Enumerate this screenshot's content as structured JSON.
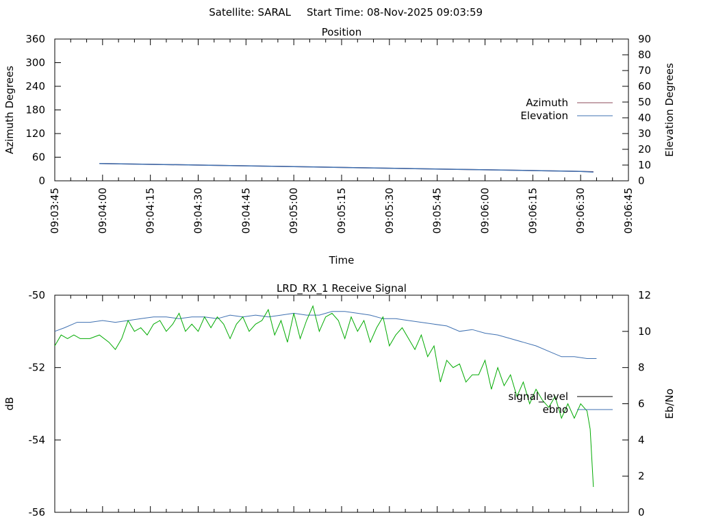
{
  "header": {
    "satellite_label": "Satellite: SARAL",
    "start_time_label": "Start Time: 08-Nov-2025 09:03:59"
  },
  "chart_data": [
    {
      "type": "line",
      "title": "Position",
      "xlabel": "Time",
      "ylabel": "Azimuth Degrees",
      "y2label": "Elevation Degrees",
      "xlim": [
        "09:03:45",
        "09:06:45"
      ],
      "ylim": [
        0,
        360
      ],
      "y2lim": [
        0,
        90
      ],
      "x_ticks": [
        "09:03:45",
        "09:04:00",
        "09:04:15",
        "09:04:30",
        "09:04:45",
        "09:05:00",
        "09:05:15",
        "09:05:30",
        "09:05:45",
        "09:06:00",
        "09:06:15",
        "09:06:30",
        "09:06:45"
      ],
      "y_ticks": [
        "0",
        "60",
        "120",
        "180",
        "240",
        "300",
        "360"
      ],
      "y2_ticks": [
        "0",
        "10",
        "20",
        "30",
        "40",
        "50",
        "60",
        "70",
        "80",
        "90"
      ],
      "legend_position": "right",
      "series": [
        {
          "name": "Azimuth",
          "axis": "left",
          "color": "#8b4a5a",
          "x": [
            "09:03:59",
            "09:04:30",
            "09:05:00",
            "09:05:30",
            "09:06:00",
            "09:06:30",
            "09:06:34"
          ],
          "values": [
            44,
            40,
            36,
            32,
            28,
            24,
            23
          ]
        },
        {
          "name": "Elevation",
          "axis": "right",
          "color": "#3d6fb0",
          "x": [
            "09:03:59",
            "09:04:30",
            "09:05:00",
            "09:05:30",
            "09:06:00",
            "09:06:30",
            "09:06:34"
          ],
          "values": [
            11,
            10,
            9,
            8,
            7,
            6,
            5.5
          ]
        }
      ]
    },
    {
      "type": "line",
      "title": "LRD_RX_1 Receive Signal",
      "ylabel": "dB",
      "y2label": "Eb/No",
      "xlim": [
        "09:03:45",
        "09:06:45"
      ],
      "ylim": [
        -56,
        -50
      ],
      "y2lim": [
        0,
        12
      ],
      "y_ticks": [
        "-50",
        "-52",
        "-54",
        "-56"
      ],
      "y2_ticks": [
        "0",
        "2",
        "4",
        "6",
        "8",
        "10",
        "12"
      ],
      "legend_position": "right",
      "series": [
        {
          "name": "signal_level",
          "axis": "left",
          "color": "#000000",
          "x": [],
          "values": []
        },
        {
          "name": "ebno",
          "axis": "right",
          "color": "#3d6fb0",
          "x": [
            "09:03:45",
            "09:03:48",
            "09:03:52",
            "09:03:56",
            "09:04:00",
            "09:04:04",
            "09:04:08",
            "09:04:12",
            "09:04:16",
            "09:04:20",
            "09:04:24",
            "09:04:28",
            "09:04:32",
            "09:04:36",
            "09:04:40",
            "09:04:44",
            "09:04:48",
            "09:04:52",
            "09:04:56",
            "09:05:00",
            "09:05:04",
            "09:05:08",
            "09:05:12",
            "09:05:16",
            "09:05:20",
            "09:05:24",
            "09:05:28",
            "09:05:32",
            "09:05:36",
            "09:05:40",
            "09:05:44",
            "09:05:48",
            "09:05:52",
            "09:05:56",
            "09:06:00",
            "09:06:04",
            "09:06:08",
            "09:06:12",
            "09:06:16",
            "09:06:20",
            "09:06:24",
            "09:06:28",
            "09:06:32",
            "09:06:35"
          ],
          "values": [
            10,
            10.2,
            10.5,
            10.5,
            10.6,
            10.5,
            10.6,
            10.7,
            10.8,
            10.8,
            10.7,
            10.8,
            10.8,
            10.7,
            10.9,
            10.8,
            10.9,
            10.8,
            10.9,
            11,
            10.9,
            10.9,
            11.1,
            11.1,
            11,
            10.9,
            10.7,
            10.7,
            10.6,
            10.5,
            10.4,
            10.3,
            10.0,
            10.1,
            9.9,
            9.8,
            9.6,
            9.4,
            9.2,
            8.9,
            8.6,
            8.6,
            8.5,
            8.5
          ]
        },
        {
          "name": "",
          "axis": "left",
          "color": "#00aa00",
          "x": [
            "09:03:45",
            "09:03:47",
            "09:03:49",
            "09:03:51",
            "09:03:53",
            "09:03:56",
            "09:03:59",
            "09:04:02",
            "09:04:04",
            "09:04:06",
            "09:04:08",
            "09:04:10",
            "09:04:12",
            "09:04:14",
            "09:04:16",
            "09:04:18",
            "09:04:20",
            "09:04:22",
            "09:04:24",
            "09:04:26",
            "09:04:28",
            "09:04:30",
            "09:04:32",
            "09:04:34",
            "09:04:36",
            "09:04:38",
            "09:04:40",
            "09:04:42",
            "09:04:44",
            "09:04:46",
            "09:04:48",
            "09:04:50",
            "09:04:52",
            "09:04:54",
            "09:04:56",
            "09:04:58",
            "09:05:00",
            "09:05:02",
            "09:05:04",
            "09:05:06",
            "09:05:08",
            "09:05:10",
            "09:05:12",
            "09:05:14",
            "09:05:16",
            "09:05:18",
            "09:05:20",
            "09:05:22",
            "09:05:24",
            "09:05:26",
            "09:05:28",
            "09:05:30",
            "09:05:32",
            "09:05:34",
            "09:05:36",
            "09:05:38",
            "09:05:40",
            "09:05:42",
            "09:05:44",
            "09:05:46",
            "09:05:48",
            "09:05:50",
            "09:05:52",
            "09:05:54",
            "09:05:56",
            "09:05:58",
            "09:06:00",
            "09:06:02",
            "09:06:04",
            "09:06:06",
            "09:06:08",
            "09:06:10",
            "09:06:12",
            "09:06:14",
            "09:06:16",
            "09:06:18",
            "09:06:20",
            "09:06:22",
            "09:06:24",
            "09:06:26",
            "09:06:28",
            "09:06:30",
            "09:06:32",
            "09:06:33",
            "09:06:34"
          ],
          "values": [
            -51.4,
            -51.1,
            -51.2,
            -51.1,
            -51.2,
            -51.2,
            -51.1,
            -51.3,
            -51.5,
            -51.2,
            -50.7,
            -51.0,
            -50.9,
            -51.1,
            -50.8,
            -50.7,
            -51.0,
            -50.8,
            -50.5,
            -51.0,
            -50.8,
            -51.0,
            -50.6,
            -50.9,
            -50.6,
            -50.8,
            -51.2,
            -50.8,
            -50.6,
            -51.0,
            -50.8,
            -50.7,
            -50.4,
            -51.1,
            -50.7,
            -51.3,
            -50.5,
            -51.2,
            -50.7,
            -50.3,
            -51.0,
            -50.6,
            -50.5,
            -50.7,
            -51.2,
            -50.6,
            -51.0,
            -50.7,
            -51.3,
            -50.9,
            -50.6,
            -51.4,
            -51.1,
            -50.9,
            -51.2,
            -51.5,
            -51.1,
            -51.7,
            -51.4,
            -52.4,
            -51.8,
            -52.0,
            -51.9,
            -52.4,
            -52.2,
            -52.2,
            -51.8,
            -52.6,
            -52.0,
            -52.5,
            -52.2,
            -52.8,
            -52.4,
            -53.0,
            -52.6,
            -52.9,
            -53.1,
            -52.8,
            -53.4,
            -53.0,
            -53.4,
            -53.0,
            -53.2,
            -53.7,
            -55.3
          ]
        }
      ]
    }
  ]
}
